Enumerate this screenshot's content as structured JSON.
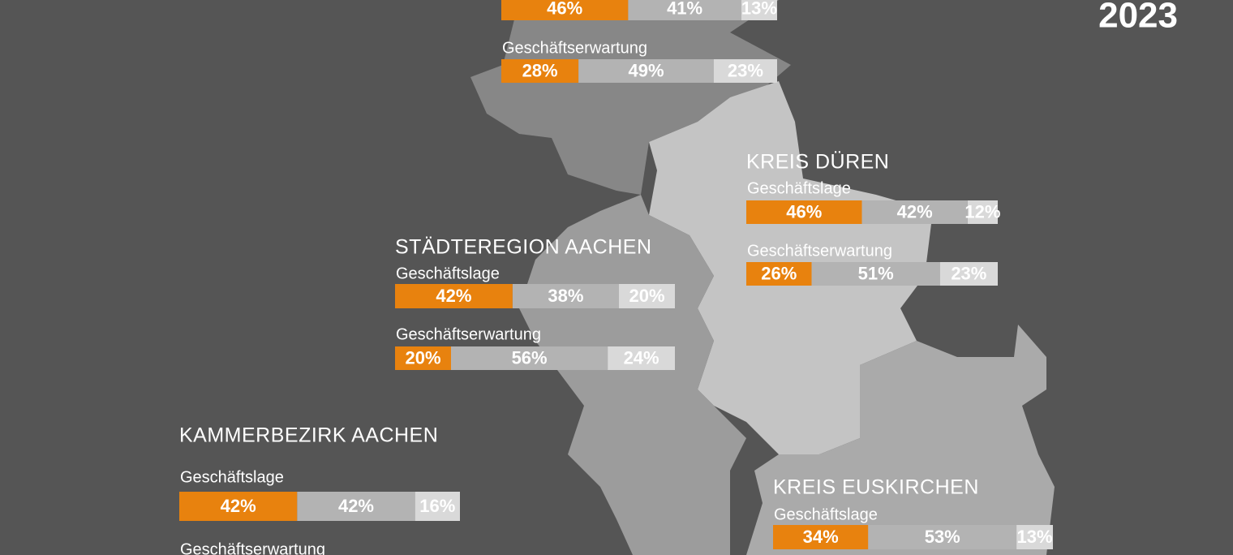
{
  "year": "2023",
  "colors": [
    "#e8820e",
    "#b3b3b3",
    "#d9d9d9"
  ],
  "regions": [
    {
      "indicators": [
        {
          "values": [
            46,
            41,
            13
          ],
          "value_labels": [
            "46%",
            "41%",
            "13%"
          ]
        },
        {
          "label": "Geschäftserwartung",
          "values": [
            28,
            49,
            23
          ],
          "value_labels": [
            "28%",
            "49%",
            "23%"
          ]
        }
      ]
    },
    {
      "name": "KREIS DÜREN",
      "indicators": [
        {
          "label": "Geschäftslage",
          "values": [
            46,
            42,
            12
          ],
          "value_labels": [
            "46%",
            "42%",
            "12%"
          ]
        },
        {
          "label": "Geschäftserwartung",
          "values": [
            26,
            51,
            23
          ],
          "value_labels": [
            "26%",
            "51%",
            "23%"
          ]
        }
      ]
    },
    {
      "name": "STÄDTEREGION AACHEN",
      "indicators": [
        {
          "label": "Geschäftslage",
          "values": [
            42,
            38,
            20
          ],
          "value_labels": [
            "42%",
            "38%",
            "20%"
          ]
        },
        {
          "label": "Geschäftserwartung",
          "values": [
            20,
            56,
            24
          ],
          "value_labels": [
            "20%",
            "56%",
            "24%"
          ]
        }
      ]
    },
    {
      "name": "KAMMERBEZIRK AACHEN",
      "indicators": [
        {
          "label": "Geschäftslage",
          "values": [
            42,
            42,
            16
          ],
          "value_labels": [
            "42%",
            "42%",
            "16%"
          ]
        },
        {
          "label": "Geschäftserwartung"
        }
      ]
    },
    {
      "name": "KREIS EUSKIRCHEN",
      "indicators": [
        {
          "label": "Geschäftslage",
          "values": [
            34,
            53,
            13
          ],
          "value_labels": [
            "34%",
            "53%",
            "13%"
          ]
        }
      ]
    }
  ]
}
